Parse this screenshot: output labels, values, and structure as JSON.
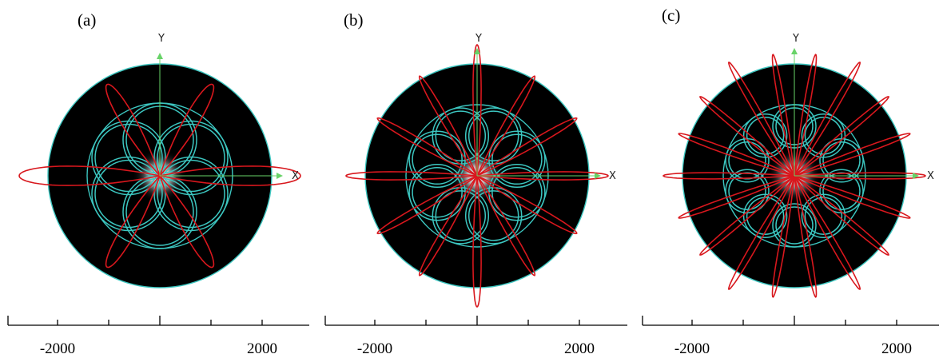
{
  "panels": [
    {
      "label": "(a)",
      "ring_count": 6,
      "ring_angle_offset_deg": 0,
      "lobe_count": 6,
      "x_axis_label": "X",
      "y_axis_label": "Y"
    },
    {
      "label": "(b)",
      "ring_count": 8,
      "ring_angle_offset_deg": 0,
      "lobe_count": 12,
      "x_axis_label": "X",
      "y_axis_label": "Y"
    },
    {
      "label": "(c)",
      "ring_count": 10,
      "ring_angle_offset_deg": 0,
      "lobe_count": 18,
      "x_axis_label": "X",
      "y_axis_label": "Y"
    }
  ],
  "scale_bar": {
    "left_label": "-2000",
    "right_label": "2000"
  },
  "colors": {
    "fiber_background": "#000000",
    "outline": "#3cc6c0",
    "intensity": "#d8171d",
    "axis_arrow": "#68d368",
    "center_glow": "#ffffff"
  }
}
